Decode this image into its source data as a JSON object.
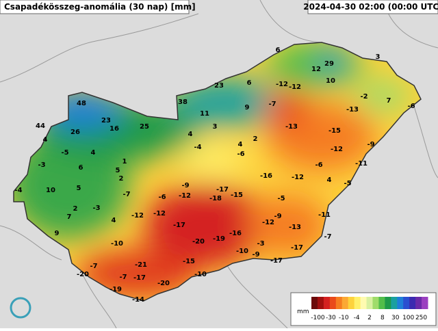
{
  "header": {
    "title": "Csapadékösszeg-anomália (30 nap) [mm]",
    "timestamp": "2024-04-30 02:00 (00:00 UTC)"
  },
  "map": {
    "labels": [
      6,
      29,
      12,
      3,
      10,
      23,
      6,
      -12,
      -12,
      -2,
      7,
      -6,
      48,
      38,
      9,
      -7,
      -13,
      11,
      23,
      44,
      16,
      25,
      3,
      -13,
      -15,
      26,
      4,
      2,
      4,
      -9,
      -5,
      4,
      -4,
      4,
      -12,
      -6,
      1,
      -3,
      6,
      -11,
      -6,
      5,
      -16,
      -12,
      4,
      2,
      -5,
      10,
      5,
      -9,
      -17,
      -4,
      -7,
      -6,
      -12,
      -15,
      -18,
      -5,
      2,
      -3,
      7,
      -12,
      -12,
      -9,
      -11,
      4,
      -12,
      -13,
      -17,
      -16,
      9,
      -20,
      -19,
      -7,
      -10,
      -3,
      -17,
      -10,
      -9,
      -17,
      -21,
      -15,
      -7,
      -20,
      -7,
      -17,
      -10,
      -20,
      -19,
      -14
    ]
  },
  "legend": {
    "unit": "mm",
    "ticks": [
      -100,
      -30,
      -10,
      -4,
      2,
      8,
      30,
      100,
      250
    ],
    "colors": [
      "#6b0a0a",
      "#a10f0f",
      "#d42020",
      "#ea4a1a",
      "#f57d20",
      "#fba834",
      "#fdd23c",
      "#fff06a",
      "#fffbb0",
      "#d8f0a0",
      "#9fdc6a",
      "#52be4a",
      "#1e9a4a",
      "#1aa0a0",
      "#1f7fd8",
      "#2a4fd0",
      "#3b2ab0",
      "#6a2aa8",
      "#9a3fc0"
    ]
  }
}
